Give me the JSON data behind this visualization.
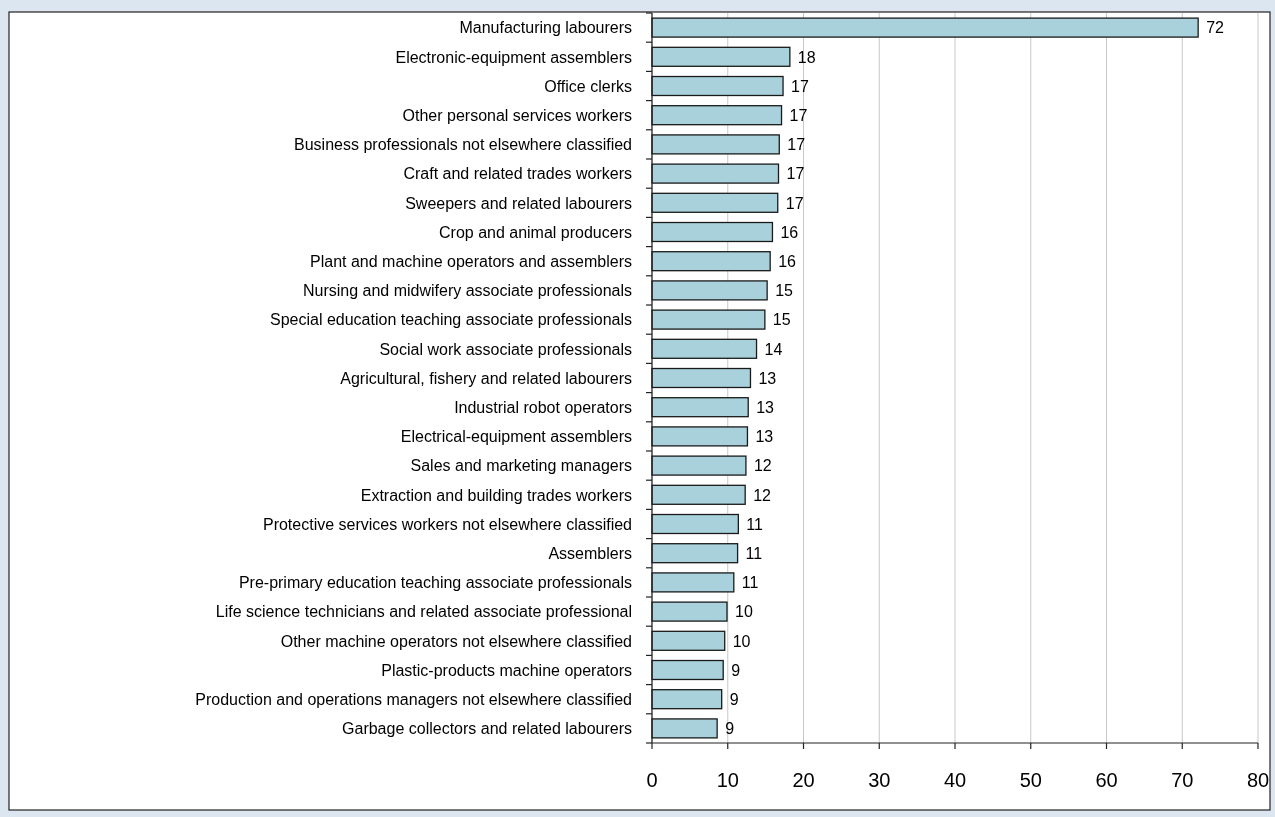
{
  "chart_data": {
    "type": "bar",
    "orientation": "horizontal",
    "categories": [
      "Manufacturing labourers",
      "Electronic-equipment assemblers",
      "Office clerks",
      "Other personal services workers",
      "Business professionals not elsewhere classified",
      "Craft and related trades workers",
      "Sweepers and related labourers",
      "Crop and animal producers",
      "Plant and machine operators and assemblers",
      "Nursing and midwifery associate professionals",
      "Special education teaching associate professionals",
      "Social work associate professionals",
      "Agricultural, fishery and related labourers",
      "Industrial robot operators",
      "Electrical-equipment assemblers",
      "Sales and marketing managers",
      "Extraction and building trades workers",
      "Protective services workers not elsewhere classified",
      "Assemblers",
      "Pre-primary education teaching associate professionals",
      "Life science technicians and related associate professional",
      "Other machine operators not elsewhere classified",
      "Plastic-products machine operators",
      "Production and operations managers not elsewhere classified",
      "Garbage collectors and related labourers"
    ],
    "values": [
      72.1,
      18.2,
      17.3,
      17.1,
      16.8,
      16.7,
      16.6,
      15.9,
      15.6,
      15.2,
      14.9,
      13.8,
      13.0,
      12.7,
      12.6,
      12.4,
      12.3,
      11.4,
      11.3,
      10.8,
      9.9,
      9.6,
      9.4,
      9.2,
      8.6
    ],
    "value_labels": [
      "72",
      "18",
      "17",
      "17",
      "17",
      "17",
      "17",
      "16",
      "16",
      "15",
      "15",
      "14",
      "13",
      "13",
      "13",
      "12",
      "12",
      "11",
      "11",
      "11",
      "10",
      "10",
      "9",
      "9",
      "9"
    ],
    "color": "#a8d1dc",
    "xlim": [
      0,
      80
    ],
    "xticks": [
      0,
      10,
      20,
      30,
      40,
      50,
      60,
      70,
      80
    ],
    "grid": "x"
  }
}
